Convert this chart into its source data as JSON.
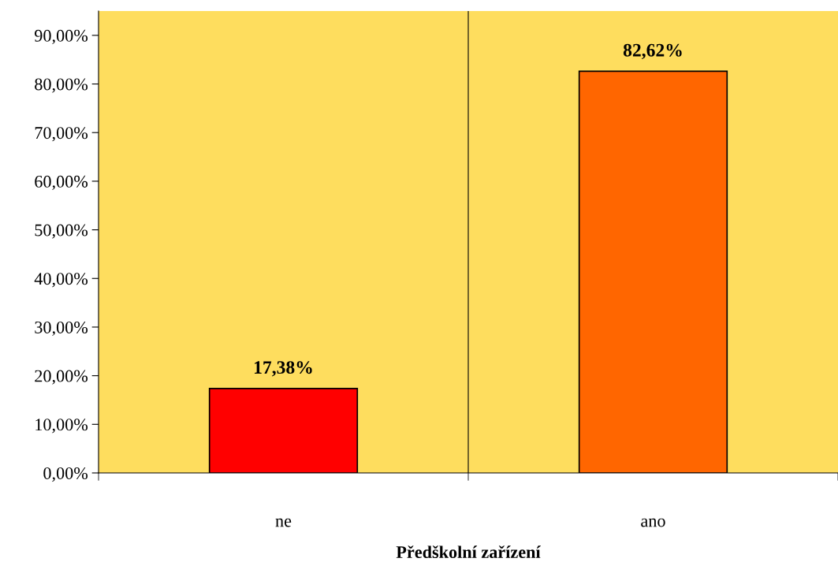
{
  "chart_data": {
    "type": "bar",
    "xlabel": "Předškolní zařízení",
    "categories": [
      "ne",
      "ano"
    ],
    "values": [
      17.38,
      82.62
    ],
    "colors": [
      "#ff0000",
      "#ff6600"
    ],
    "value_labels": [
      "17,38%",
      "82,62%"
    ],
    "ylim": [
      0,
      95
    ],
    "yticks": [
      {
        "value": 0,
        "label": "0,00%"
      },
      {
        "value": 10,
        "label": "10,00%"
      },
      {
        "value": 20,
        "label": "20,00%"
      },
      {
        "value": 30,
        "label": "30,00%"
      },
      {
        "value": 40,
        "label": "40,00%"
      },
      {
        "value": 50,
        "label": "50,00%"
      },
      {
        "value": 60,
        "label": "60,00%"
      },
      {
        "value": 70,
        "label": "70,00%"
      },
      {
        "value": 80,
        "label": "80,00%"
      },
      {
        "value": 90,
        "label": "90,00%"
      }
    ],
    "grid": "x"
  }
}
